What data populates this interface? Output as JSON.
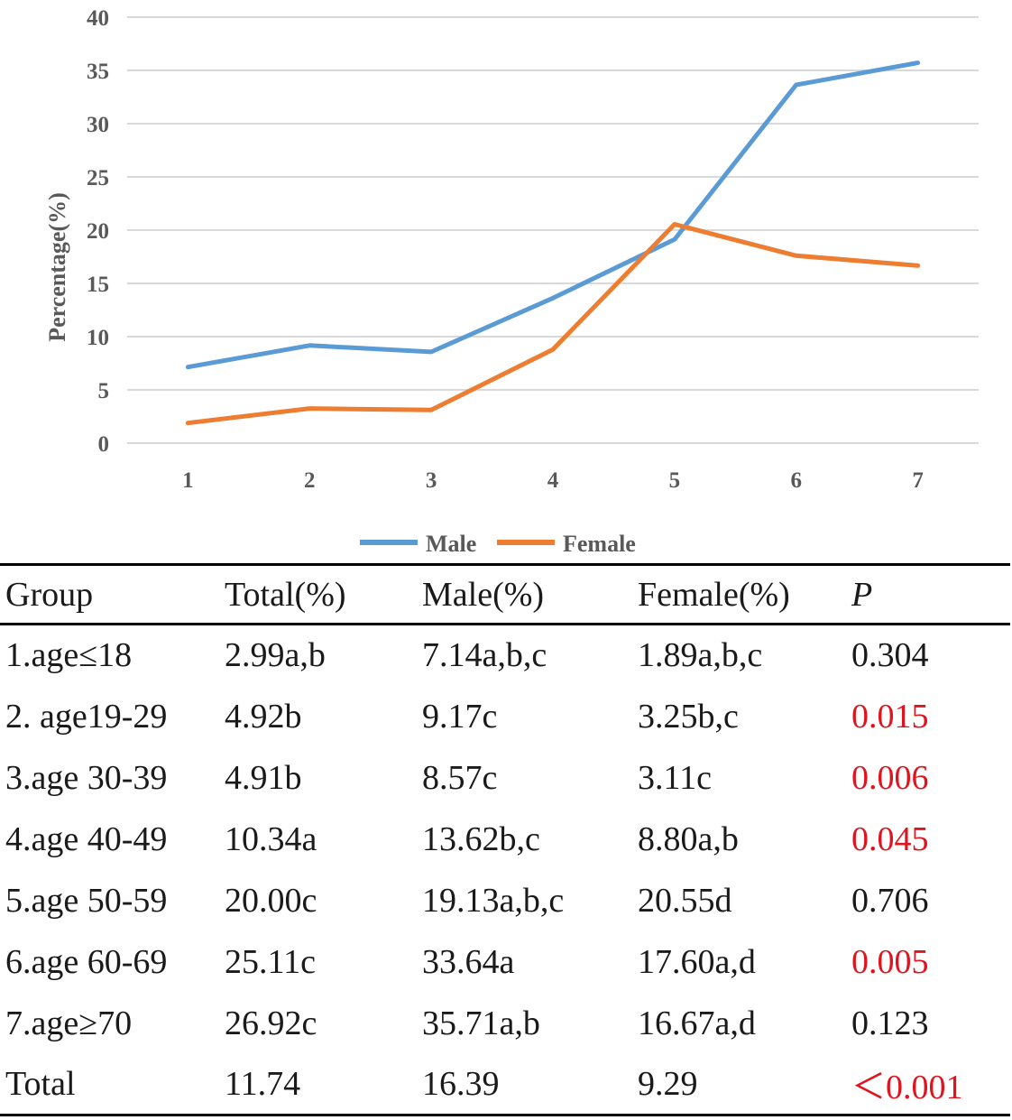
{
  "colors": {
    "male": "#5b9bd5",
    "female": "#ed7d31",
    "grid": "#d9d9d9",
    "axis_text": "#595959",
    "significant": "#e0141e"
  },
  "chart_data": {
    "type": "line",
    "title": "",
    "xlabel": "",
    "ylabel": "Percentage(%)",
    "categories": [
      "1",
      "2",
      "3",
      "4",
      "5",
      "6",
      "7"
    ],
    "ylim": [
      0,
      40
    ],
    "yticks": [
      0,
      5,
      10,
      15,
      20,
      25,
      30,
      35,
      40
    ],
    "grid": true,
    "legend_position": "bottom",
    "series": [
      {
        "name": "Male",
        "color": "#5b9bd5",
        "values": [
          7.14,
          9.17,
          8.57,
          13.62,
          19.13,
          33.64,
          35.71
        ]
      },
      {
        "name": "Female",
        "color": "#ed7d31",
        "values": [
          1.89,
          3.25,
          3.11,
          8.8,
          20.55,
          17.6,
          16.67
        ]
      }
    ]
  },
  "table": {
    "headers": [
      "Group",
      "Total(%)",
      "Male(%)",
      "Female(%)",
      "P"
    ],
    "rows": [
      {
        "group": "1.age≤18",
        "total": "2.99a,b",
        "male": "7.14a,b,c",
        "female": "1.89a,b,c",
        "p": "0.304",
        "significant": false
      },
      {
        "group": "2. age19-29",
        "total": "4.92b",
        "male": "9.17c",
        "female": "3.25b,c",
        "p": "0.015",
        "significant": true
      },
      {
        "group": "3.age 30-39",
        "total": "4.91b",
        "male": "8.57c",
        "female": "3.11c",
        "p": "0.006",
        "significant": true
      },
      {
        "group": "4.age 40-49",
        "total": "10.34a",
        "male": "13.62b,c",
        "female": "8.80a,b",
        "p": "0.045",
        "significant": true
      },
      {
        "group": "5.age 50-59",
        "total": "20.00c",
        "male": "19.13a,b,c",
        "female": "20.55d",
        "p": "0.706",
        "significant": false
      },
      {
        "group": "6.age 60-69",
        "total": "25.11c",
        "male": "33.64a",
        "female": "17.60a,d",
        "p": "0.005",
        "significant": true
      },
      {
        "group": "7.age≥70",
        "total": "26.92c",
        "male": "35.71a,b",
        "female": "16.67a,d",
        "p": "0.123",
        "significant": false
      },
      {
        "group": "Total",
        "total": "11.74",
        "male": "16.39",
        "female": "9.29",
        "p": "＜0.001",
        "significant": true
      }
    ]
  }
}
